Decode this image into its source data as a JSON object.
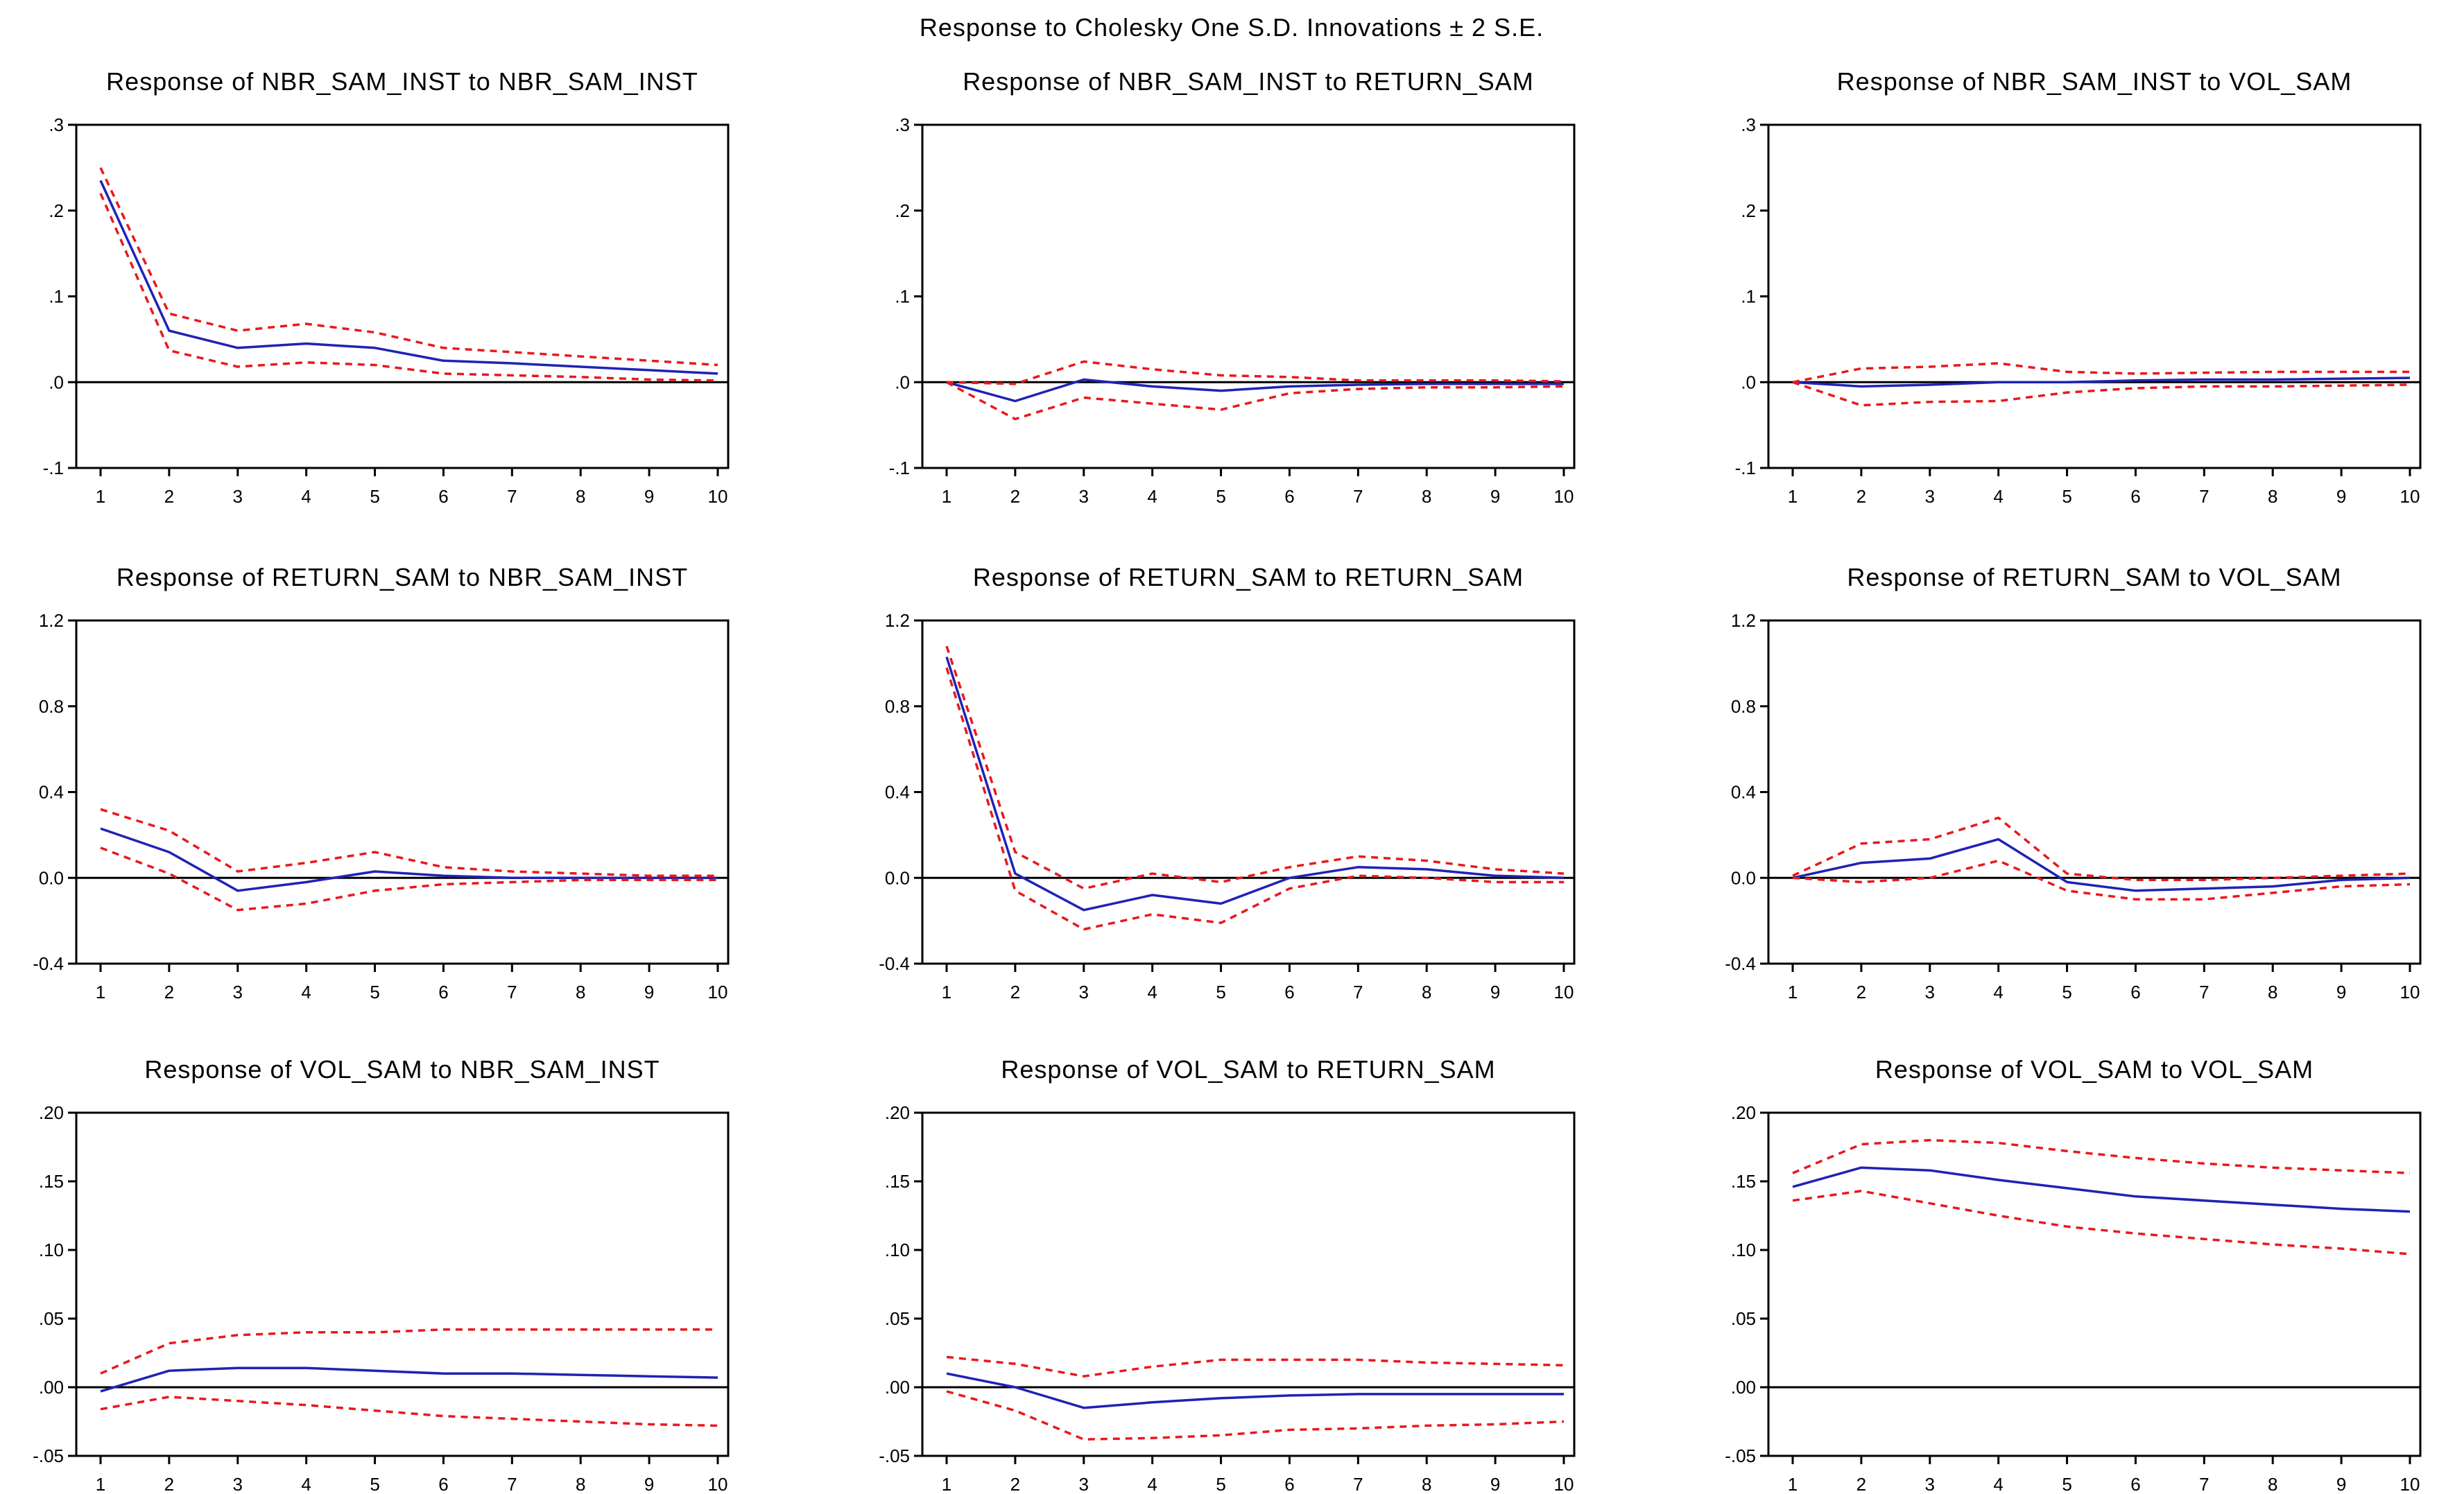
{
  "colors": {
    "response": "#1f23b4",
    "bands": "#e8191c",
    "axis": "#000000"
  },
  "figure_title": "Response to Cholesky One S.D. Innovations ± 2 S.E.",
  "chart_data": [
    {
      "type": "line",
      "title": "Response of NBR_SAM_INST to NBR_SAM_INST",
      "x": [
        1,
        2,
        3,
        4,
        5,
        6,
        7,
        8,
        9,
        10
      ],
      "ylim": [
        -0.1,
        0.3
      ],
      "yticks": [
        -0.1,
        0.0,
        0.1,
        0.2,
        0.3
      ],
      "ytick_labels": [
        "-.1",
        ".0",
        ".1",
        ".2",
        ".3"
      ],
      "series": [
        {
          "name": "response",
          "values": [
            0.235,
            0.06,
            0.04,
            0.045,
            0.04,
            0.025,
            0.022,
            0.018,
            0.014,
            0.01
          ]
        },
        {
          "name": "upper",
          "values": [
            0.25,
            0.08,
            0.06,
            0.068,
            0.058,
            0.04,
            0.035,
            0.03,
            0.025,
            0.02
          ]
        },
        {
          "name": "lower",
          "values": [
            0.22,
            0.037,
            0.018,
            0.023,
            0.02,
            0.01,
            0.008,
            0.006,
            0.003,
            0.002
          ]
        }
      ]
    },
    {
      "type": "line",
      "title": "Response of NBR_SAM_INST to RETURN_SAM",
      "x": [
        1,
        2,
        3,
        4,
        5,
        6,
        7,
        8,
        9,
        10
      ],
      "ylim": [
        -0.1,
        0.3
      ],
      "yticks": [
        -0.1,
        0.0,
        0.1,
        0.2,
        0.3
      ],
      "ytick_labels": [
        "-.1",
        ".0",
        ".1",
        ".2",
        ".3"
      ],
      "series": [
        {
          "name": "response",
          "values": [
            0.0,
            -0.022,
            0.003,
            -0.005,
            -0.01,
            -0.005,
            -0.003,
            -0.002,
            -0.002,
            -0.002
          ]
        },
        {
          "name": "upper",
          "values": [
            0.0,
            -0.002,
            0.024,
            0.015,
            0.008,
            0.006,
            0.002,
            0.002,
            0.002,
            0.001
          ]
        },
        {
          "name": "lower",
          "values": [
            0.0,
            -0.043,
            -0.018,
            -0.025,
            -0.032,
            -0.013,
            -0.008,
            -0.006,
            -0.006,
            -0.005
          ]
        }
      ]
    },
    {
      "type": "line",
      "title": "Response of NBR_SAM_INST to VOL_SAM",
      "x": [
        1,
        2,
        3,
        4,
        5,
        6,
        7,
        8,
        9,
        10
      ],
      "ylim": [
        -0.1,
        0.3
      ],
      "yticks": [
        -0.1,
        0.0,
        0.1,
        0.2,
        0.3
      ],
      "ytick_labels": [
        "-.1",
        ".0",
        ".1",
        ".2",
        ".3"
      ],
      "series": [
        {
          "name": "response",
          "values": [
            0.0,
            -0.005,
            -0.003,
            0.0,
            0.0,
            0.002,
            0.003,
            0.003,
            0.004,
            0.005
          ]
        },
        {
          "name": "upper",
          "values": [
            0.0,
            0.016,
            0.018,
            0.022,
            0.012,
            0.01,
            0.011,
            0.012,
            0.012,
            0.012
          ]
        },
        {
          "name": "lower",
          "values": [
            0.0,
            -0.027,
            -0.023,
            -0.022,
            -0.012,
            -0.007,
            -0.005,
            -0.005,
            -0.004,
            -0.003
          ]
        }
      ]
    },
    {
      "type": "line",
      "title": "Response of RETURN_SAM to NBR_SAM_INST",
      "x": [
        1,
        2,
        3,
        4,
        5,
        6,
        7,
        8,
        9,
        10
      ],
      "ylim": [
        -0.4,
        1.2
      ],
      "yticks": [
        -0.4,
        0.0,
        0.4,
        0.8,
        1.2
      ],
      "ytick_labels": [
        "-0.4",
        "0.0",
        "0.4",
        "0.8",
        "1.2"
      ],
      "series": [
        {
          "name": "response",
          "values": [
            0.23,
            0.12,
            -0.06,
            -0.02,
            0.03,
            0.01,
            0.0,
            0.0,
            0.0,
            0.0
          ]
        },
        {
          "name": "upper",
          "values": [
            0.32,
            0.22,
            0.03,
            0.07,
            0.12,
            0.05,
            0.03,
            0.02,
            0.01,
            0.01
          ]
        },
        {
          "name": "lower",
          "values": [
            0.14,
            0.02,
            -0.15,
            -0.12,
            -0.06,
            -0.03,
            -0.02,
            -0.01,
            -0.01,
            -0.01
          ]
        }
      ]
    },
    {
      "type": "line",
      "title": "Response of RETURN_SAM to RETURN_SAM",
      "x": [
        1,
        2,
        3,
        4,
        5,
        6,
        7,
        8,
        9,
        10
      ],
      "ylim": [
        -0.4,
        1.2
      ],
      "yticks": [
        -0.4,
        0.0,
        0.4,
        0.8,
        1.2
      ],
      "ytick_labels": [
        "-0.4",
        "0.0",
        "0.4",
        "0.8",
        "1.2"
      ],
      "series": [
        {
          "name": "response",
          "values": [
            1.03,
            0.02,
            -0.15,
            -0.08,
            -0.12,
            0.0,
            0.05,
            0.04,
            0.01,
            0.0
          ]
        },
        {
          "name": "upper",
          "values": [
            1.08,
            0.12,
            -0.05,
            0.02,
            -0.02,
            0.05,
            0.1,
            0.08,
            0.04,
            0.02
          ]
        },
        {
          "name": "lower",
          "values": [
            0.98,
            -0.06,
            -0.24,
            -0.17,
            -0.21,
            -0.05,
            0.01,
            0.0,
            -0.02,
            -0.02
          ]
        }
      ]
    },
    {
      "type": "line",
      "title": "Response of RETURN_SAM to VOL_SAM",
      "x": [
        1,
        2,
        3,
        4,
        5,
        6,
        7,
        8,
        9,
        10
      ],
      "ylim": [
        -0.4,
        1.2
      ],
      "yticks": [
        -0.4,
        0.0,
        0.4,
        0.8,
        1.2
      ],
      "ytick_labels": [
        "-0.4",
        "0.0",
        "0.4",
        "0.8",
        "1.2"
      ],
      "series": [
        {
          "name": "response",
          "values": [
            0.0,
            0.07,
            0.09,
            0.18,
            -0.02,
            -0.06,
            -0.05,
            -0.04,
            -0.01,
            0.0
          ]
        },
        {
          "name": "upper",
          "values": [
            0.01,
            0.16,
            0.18,
            0.28,
            0.02,
            -0.01,
            -0.01,
            0.0,
            0.01,
            0.02
          ]
        },
        {
          "name": "lower",
          "values": [
            0.0,
            -0.02,
            0.0,
            0.08,
            -0.06,
            -0.1,
            -0.1,
            -0.07,
            -0.04,
            -0.03
          ]
        }
      ]
    },
    {
      "type": "line",
      "title": "Response of VOL_SAM to NBR_SAM_INST",
      "x": [
        1,
        2,
        3,
        4,
        5,
        6,
        7,
        8,
        9,
        10
      ],
      "ylim": [
        -0.05,
        0.2
      ],
      "yticks": [
        -0.05,
        0.0,
        0.05,
        0.1,
        0.15,
        0.2
      ],
      "ytick_labels": [
        "-.05",
        ".00",
        ".05",
        ".10",
        ".15",
        ".20"
      ],
      "series": [
        {
          "name": "response",
          "values": [
            -0.003,
            0.012,
            0.014,
            0.014,
            0.012,
            0.01,
            0.01,
            0.009,
            0.008,
            0.007
          ]
        },
        {
          "name": "upper",
          "values": [
            0.01,
            0.032,
            0.038,
            0.04,
            0.04,
            0.042,
            0.042,
            0.042,
            0.042,
            0.042
          ]
        },
        {
          "name": "lower",
          "values": [
            -0.016,
            -0.007,
            -0.01,
            -0.013,
            -0.017,
            -0.021,
            -0.023,
            -0.025,
            -0.027,
            -0.028
          ]
        }
      ]
    },
    {
      "type": "line",
      "title": "Response of VOL_SAM to RETURN_SAM",
      "x": [
        1,
        2,
        3,
        4,
        5,
        6,
        7,
        8,
        9,
        10
      ],
      "ylim": [
        -0.05,
        0.2
      ],
      "yticks": [
        -0.05,
        0.0,
        0.05,
        0.1,
        0.15,
        0.2
      ],
      "ytick_labels": [
        "-.05",
        ".00",
        ".05",
        ".10",
        ".15",
        ".20"
      ],
      "series": [
        {
          "name": "response",
          "values": [
            0.01,
            0.0,
            -0.015,
            -0.011,
            -0.008,
            -0.006,
            -0.005,
            -0.005,
            -0.005,
            -0.005
          ]
        },
        {
          "name": "upper",
          "values": [
            0.022,
            0.017,
            0.008,
            0.015,
            0.02,
            0.02,
            0.02,
            0.018,
            0.017,
            0.016
          ]
        },
        {
          "name": "lower",
          "values": [
            -0.003,
            -0.017,
            -0.038,
            -0.037,
            -0.035,
            -0.031,
            -0.03,
            -0.028,
            -0.027,
            -0.025
          ]
        }
      ]
    },
    {
      "type": "line",
      "title": "Response of VOL_SAM to VOL_SAM",
      "x": [
        1,
        2,
        3,
        4,
        5,
        6,
        7,
        8,
        9,
        10
      ],
      "ylim": [
        -0.05,
        0.2
      ],
      "yticks": [
        -0.05,
        0.0,
        0.05,
        0.1,
        0.15,
        0.2
      ],
      "ytick_labels": [
        "-.05",
        ".00",
        ".05",
        ".10",
        ".15",
        ".20"
      ],
      "series": [
        {
          "name": "response",
          "values": [
            0.146,
            0.16,
            0.158,
            0.151,
            0.145,
            0.139,
            0.136,
            0.133,
            0.13,
            0.128
          ]
        },
        {
          "name": "upper",
          "values": [
            0.156,
            0.177,
            0.18,
            0.178,
            0.172,
            0.167,
            0.163,
            0.16,
            0.158,
            0.156
          ]
        },
        {
          "name": "lower",
          "values": [
            0.136,
            0.143,
            0.134,
            0.125,
            0.117,
            0.112,
            0.108,
            0.104,
            0.101,
            0.097
          ]
        }
      ]
    }
  ]
}
